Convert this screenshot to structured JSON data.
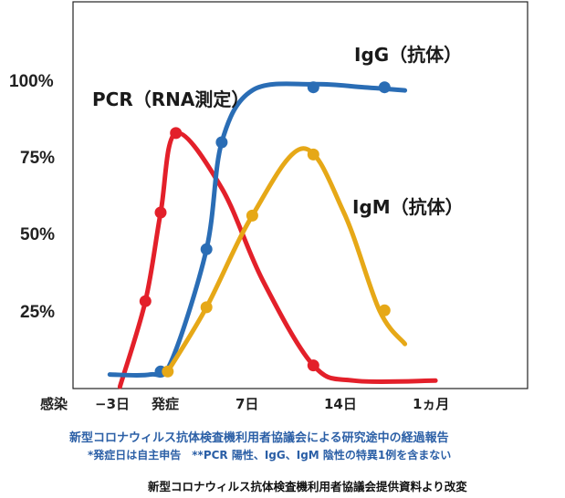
{
  "chart_data": {
    "type": "line",
    "x_categories": [
      "感染",
      "−3日",
      "発症",
      "7日",
      "14日",
      "1ヵ月"
    ],
    "y_ticks": [
      "25%",
      "50%",
      "75%",
      "100%"
    ],
    "ylim": [
      0,
      100
    ],
    "grid": false,
    "series": [
      {
        "name": "PCR（RNA測定）",
        "color": "#e3202a",
        "points": [
          {
            "x": -4,
            "y": 0
          },
          {
            "x": -1.5,
            "y": 28
          },
          {
            "x": 0,
            "y": 57
          },
          {
            "x": 1.5,
            "y": 83
          },
          {
            "x": 6,
            "y": 65
          },
          {
            "x": 10,
            "y": 35
          },
          {
            "x": 15,
            "y": 7
          },
          {
            "x": 19,
            "y": 2
          },
          {
            "x": 27,
            "y": 2
          }
        ],
        "markers": [
          {
            "x": -1.5,
            "y": 28
          },
          {
            "x": 0,
            "y": 57
          },
          {
            "x": 1.5,
            "y": 83
          },
          {
            "x": 15,
            "y": 7
          }
        ]
      },
      {
        "name": "IgG（抗体）",
        "color": "#2a6db5",
        "points": [
          {
            "x": -5,
            "y": 4
          },
          {
            "x": -1,
            "y": 4
          },
          {
            "x": 1,
            "y": 8
          },
          {
            "x": 4.5,
            "y": 45
          },
          {
            "x": 6,
            "y": 80
          },
          {
            "x": 9,
            "y": 97
          },
          {
            "x": 15,
            "y": 99
          },
          {
            "x": 20,
            "y": 98
          },
          {
            "x": 24,
            "y": 97
          }
        ],
        "markers": [
          {
            "x": 0,
            "y": 5
          },
          {
            "x": 4.5,
            "y": 45
          },
          {
            "x": 6,
            "y": 80
          },
          {
            "x": 15,
            "y": 98
          },
          {
            "x": 22,
            "y": 98
          }
        ]
      },
      {
        "name": "IgM（抗体）",
        "color": "#e6a817",
        "points": [
          {
            "x": 0.7,
            "y": 5
          },
          {
            "x": 4.5,
            "y": 26
          },
          {
            "x": 9,
            "y": 56
          },
          {
            "x": 14,
            "y": 78
          },
          {
            "x": 18,
            "y": 57
          },
          {
            "x": 21.5,
            "y": 25
          },
          {
            "x": 24,
            "y": 14
          }
        ],
        "markers": [
          {
            "x": 0.7,
            "y": 5
          },
          {
            "x": 4.5,
            "y": 26
          },
          {
            "x": 9,
            "y": 56
          },
          {
            "x": 15,
            "y": 76
          },
          {
            "x": 22,
            "y": 25
          }
        ]
      }
    ],
    "notes": [
      "新型コロナウィルス抗体検査機利用者協議会による研究途中の経過報告",
      "*発症日は自主申告　**PCR 陽性、IgG、IgM 陰性の特異1例を含まない",
      "新型コロナウィルス抗体検査機利用者協議会提供資料より改変"
    ]
  }
}
